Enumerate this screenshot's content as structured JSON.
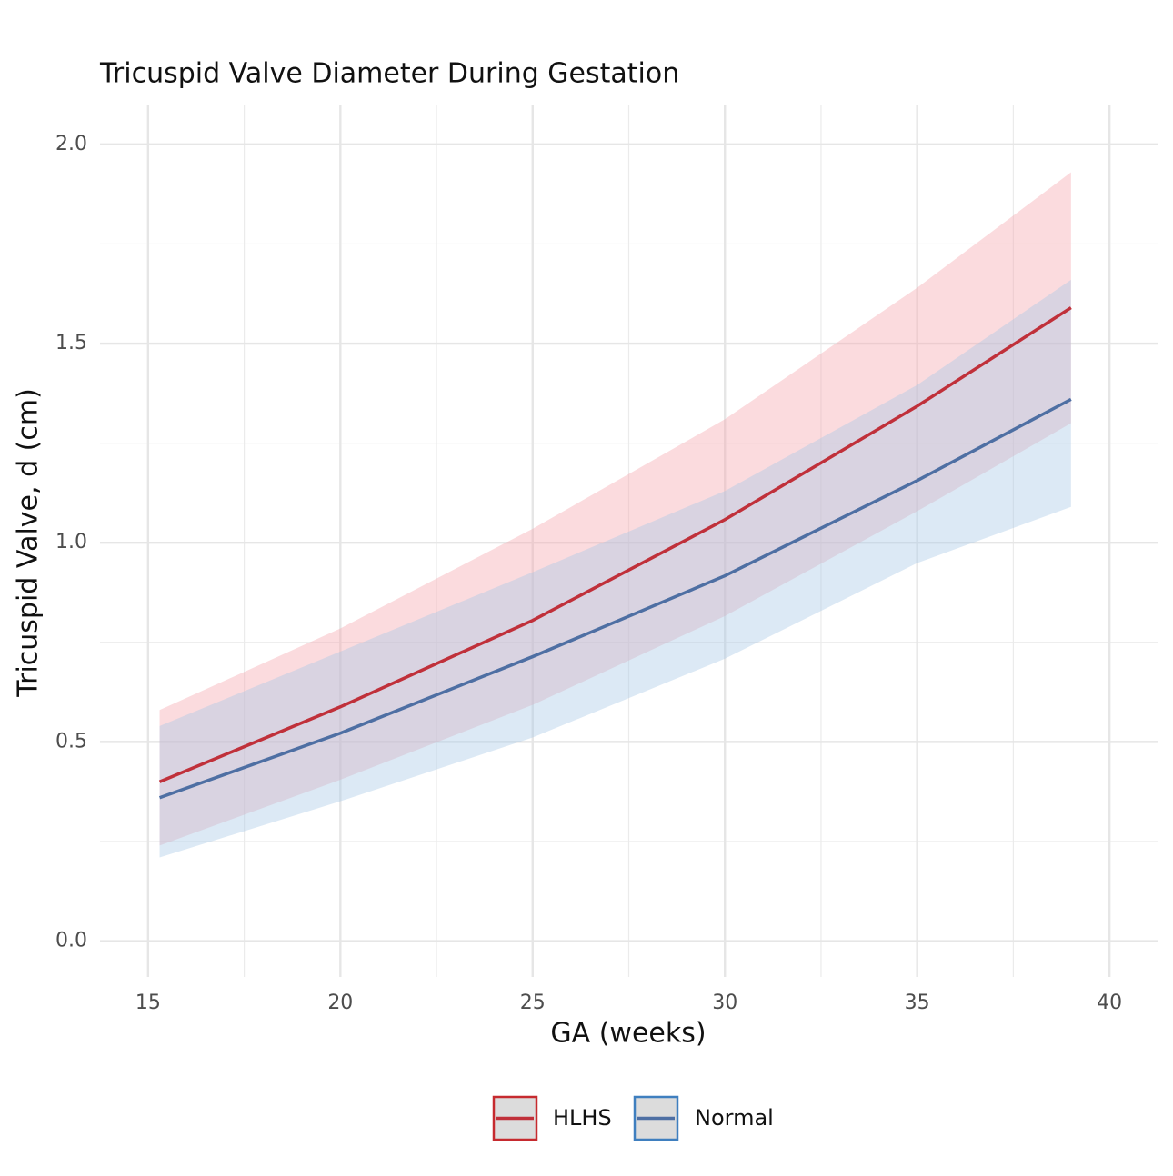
{
  "chart_data": {
    "type": "line",
    "title": "Tricuspid Valve Diameter During Gestation",
    "xlabel": "GA (weeks)",
    "ylabel": "Tricuspid Valve, d (cm)",
    "x": [
      15.3,
      20,
      25,
      30,
      35,
      39
    ],
    "series": [
      {
        "name": "HLHS",
        "color": "#c0303a",
        "band_color": "#f4a6ad",
        "key_border": "#c62a2f",
        "values": [
          0.4,
          0.588,
          0.805,
          1.058,
          1.343,
          1.59
        ],
        "lower": [
          0.24,
          0.405,
          0.593,
          0.816,
          1.079,
          1.3
        ],
        "upper": [
          0.58,
          0.785,
          1.035,
          1.31,
          1.64,
          1.93
        ]
      },
      {
        "name": "Normal",
        "color": "#4e6fa3",
        "band_color": "#a8c8e6",
        "key_border": "#3f7fbf",
        "values": [
          0.36,
          0.522,
          0.714,
          0.917,
          1.156,
          1.36
        ],
        "lower": [
          0.21,
          0.351,
          0.511,
          0.709,
          0.949,
          1.09
        ],
        "upper": [
          0.54,
          0.727,
          0.926,
          1.13,
          1.396,
          1.66
        ]
      }
    ],
    "xlim": [
      13.75,
      41.25
    ],
    "ylim": [
      -0.09,
      2.1
    ],
    "xticks": [
      15,
      20,
      25,
      30,
      35,
      40
    ],
    "yticks": [
      {
        "value": 0,
        "label": "0.0"
      },
      {
        "value": 0.5,
        "label": "0.5"
      },
      {
        "value": 1,
        "label": "1.0"
      },
      {
        "value": 1.5,
        "label": "1.5"
      },
      {
        "value": 2,
        "label": "2.0"
      }
    ],
    "xminor": [
      17.5,
      22.5,
      27.5,
      32.5,
      37.5
    ],
    "yminor": [
      0.25,
      0.75,
      1.25,
      1.75
    ],
    "grid": true,
    "legend": "bottom"
  }
}
